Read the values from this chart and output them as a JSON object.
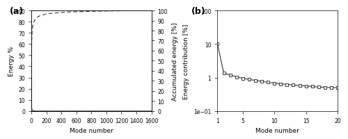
{
  "panel_a": {
    "xlabel": "Mode number",
    "ylabel_left": "Energy %",
    "ylabel_right": "Accumulated energy [%]",
    "xlim": [
      0,
      1600
    ],
    "ylim_left": [
      0,
      90
    ],
    "ylim_right": [
      0,
      100
    ],
    "xticks": [
      0,
      200,
      400,
      600,
      800,
      1000,
      1200,
      1400,
      1600
    ],
    "yticks_left": [
      0,
      10,
      20,
      30,
      40,
      50,
      60,
      70,
      80,
      90
    ],
    "yticks_right": [
      0,
      10,
      20,
      30,
      40,
      50,
      60,
      70,
      80,
      90,
      100
    ],
    "label": "(a)"
  },
  "panel_b": {
    "xlabel": "Mode number",
    "ylabel": "Energy contribution [%]",
    "xlim": [
      1,
      20
    ],
    "ylim": [
      0.1,
      100
    ],
    "xticks": [
      1,
      5,
      10,
      15,
      20
    ],
    "yticks": [
      0.1,
      1,
      10,
      100
    ],
    "label": "(b)"
  },
  "line_color": "#333333",
  "background_color": "#ffffff",
  "energy_b": [
    10.0,
    1.35,
    1.2,
    1.05,
    0.95,
    0.88,
    0.82,
    0.77,
    0.72,
    0.68,
    0.65,
    0.62,
    0.6,
    0.58,
    0.56,
    0.54,
    0.52,
    0.51,
    0.5,
    0.5
  ]
}
